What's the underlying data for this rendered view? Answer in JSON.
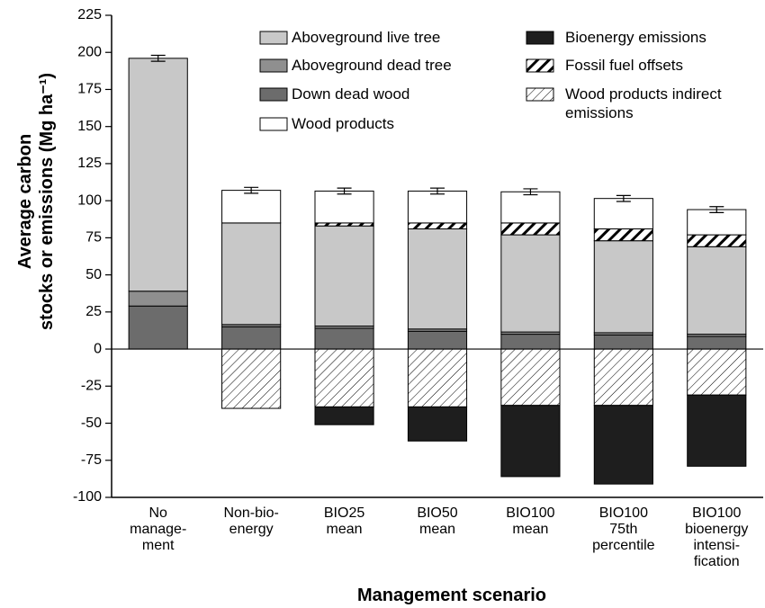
{
  "chart_data": {
    "type": "stacked_bar",
    "x_label": "Management scenario",
    "y_label": "Average carbon\nstocks or emissions (Mg ha⁻¹)",
    "categories": [
      "No\nmanage-\nment",
      "Non-bio-\nenergy",
      "BIO25\nmean",
      "BIO50\nmean",
      "BIO100\nmean",
      "BIO100\n75th\npercentile",
      "BIO100\nbioenergy\nintensi-\nfication"
    ],
    "series": [
      {
        "name": "Aboveground live tree",
        "color": "#c8c8c8",
        "values": [
          157,
          68.5,
          67.5,
          67.5,
          65.5,
          62,
          59
        ]
      },
      {
        "name": "Aboveground dead tree",
        "color": "#8f8f8f",
        "values": [
          10,
          1.5,
          1.5,
          1.5,
          1.5,
          1.5,
          1.5
        ]
      },
      {
        "name": "Down dead wood",
        "color": "#6c6c6c",
        "values": [
          29,
          15,
          14,
          12,
          10,
          9.5,
          8.5
        ]
      },
      {
        "name": "Wood products",
        "color": "#ffffff",
        "values": [
          0,
          22,
          21.5,
          21.5,
          21,
          20.5,
          17
        ],
        "errors": [
          2,
          2,
          2,
          2,
          2,
          2,
          2
        ]
      },
      {
        "name": "Bioenergy emissions",
        "color": "#1e1e1e",
        "values": [
          0,
          0,
          -12,
          -23,
          -48,
          -53,
          -48
        ]
      },
      {
        "name": "Fossil fuel offsets",
        "color": "#000000",
        "pattern": "thick-diagonal",
        "values": [
          0,
          0,
          2,
          4,
          8,
          8,
          8
        ]
      },
      {
        "name": "Wood products indirect\nemissions",
        "color": "#000000",
        "pattern": "diagonal",
        "values": [
          0,
          -40,
          -39,
          -39,
          -38,
          -38,
          -31
        ]
      }
    ],
    "ylim": [
      -100,
      225
    ],
    "yticks": [
      -100,
      -75,
      -50,
      -25,
      0,
      25,
      50,
      75,
      100,
      125,
      150,
      175,
      200,
      225
    ],
    "grid": false
  }
}
